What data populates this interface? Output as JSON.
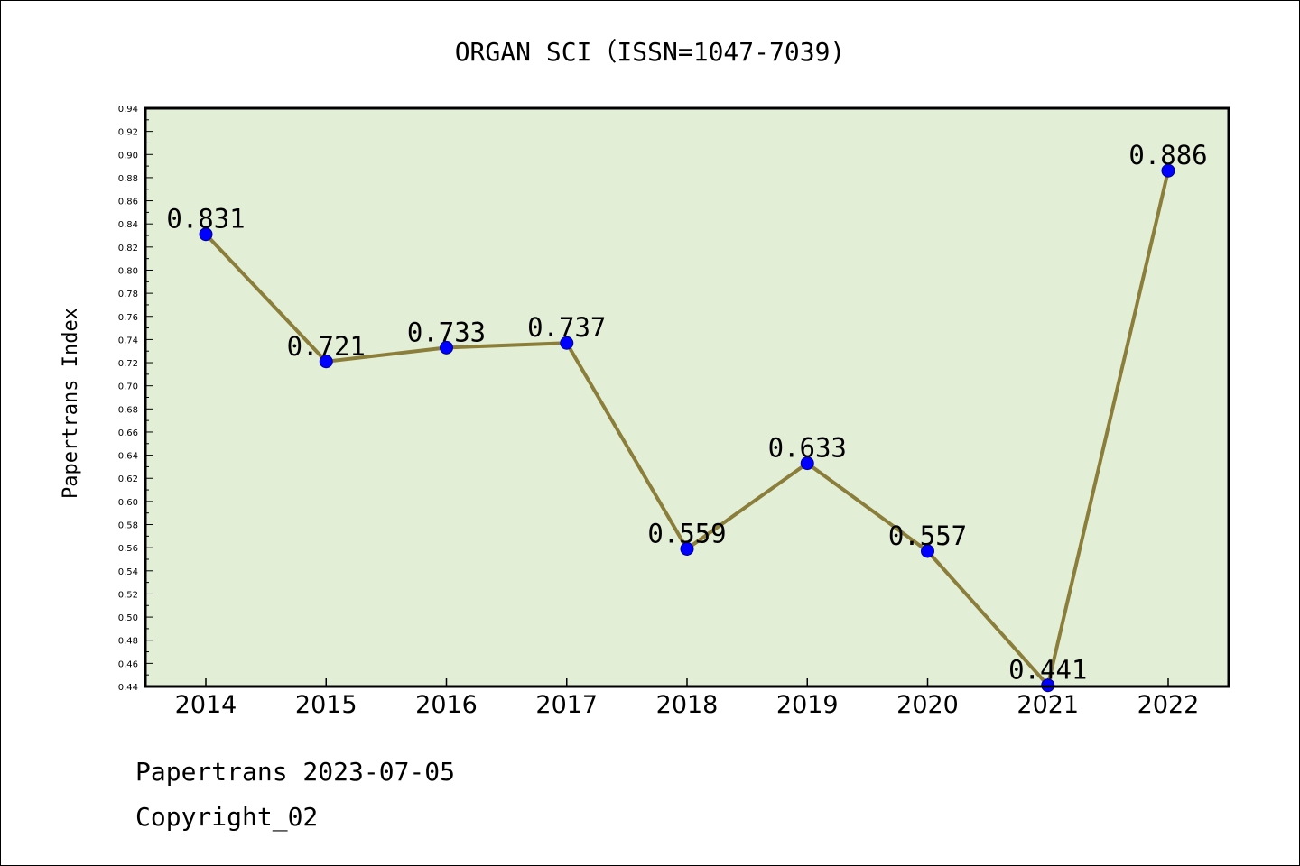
{
  "chart_data": {
    "type": "line",
    "title": "ORGAN SCI（ISSN=1047-7039)",
    "xlabel": "",
    "ylabel": "Papertrans Index",
    "categories": [
      "2014",
      "2015",
      "2016",
      "2017",
      "2018",
      "2019",
      "2020",
      "2021",
      "2022"
    ],
    "series": [
      {
        "values": [
          0.831,
          0.721,
          0.733,
          0.737,
          0.559,
          0.633,
          0.557,
          0.441,
          0.886
        ],
        "labels": [
          "0.831",
          "0.721",
          "0.733",
          "0.737",
          "0.559",
          "0.633",
          "0.557",
          "0.441",
          "0.886"
        ]
      }
    ],
    "ylim": [
      0.44,
      0.94
    ],
    "yticks": [
      "0.44",
      "0.46",
      "0.48",
      "0.50",
      "0.52",
      "0.54",
      "0.56",
      "0.58",
      "0.60",
      "0.62",
      "0.64",
      "0.66",
      "0.68",
      "0.70",
      "0.72",
      "0.74",
      "0.76",
      "0.78",
      "0.80",
      "0.82",
      "0.84",
      "0.86",
      "0.88",
      "0.90",
      "0.92",
      "0.94"
    ],
    "grid": false,
    "legend": "none",
    "colors": {
      "plot_background": "#e2efd6",
      "line": "#8b7d3a",
      "marker": "#0000ff"
    }
  },
  "footer": {
    "line1": "Papertrans 2023-07-05",
    "line2": "Copyright_02"
  }
}
